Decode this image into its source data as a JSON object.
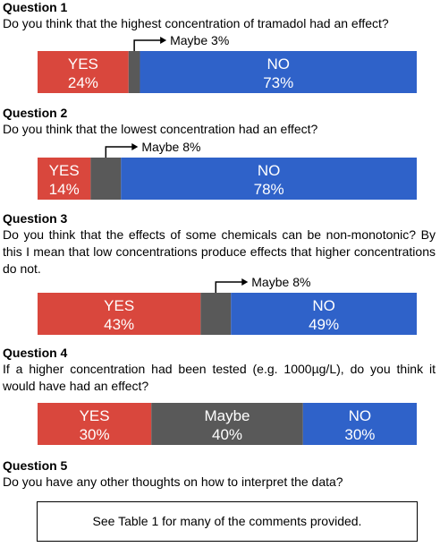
{
  "questions": [
    {
      "heading": "Question 1",
      "text": "Do you think that the highest concentration of tramadol had an effect?",
      "categories": [
        "YES",
        "Maybe",
        "NO"
      ],
      "values": [
        24,
        3,
        73
      ],
      "value_labels": [
        "24%",
        "3%",
        "73%"
      ],
      "colors": [
        "#d9473d",
        "#595959",
        "#2f62c9"
      ]
    },
    {
      "heading": "Question 2",
      "text": "Do you think that the lowest concentration had an effect?",
      "categories": [
        "YES",
        "Maybe",
        "NO"
      ],
      "values": [
        14,
        8,
        78
      ],
      "value_labels": [
        "14%",
        "8%",
        "78%"
      ],
      "colors": [
        "#d9473d",
        "#595959",
        "#2f62c9"
      ]
    },
    {
      "heading": "Question 3",
      "text": "Do you think that the effects of some chemicals can be non-monotonic? By this I mean that low concentrations produce effects that higher concentrations do not.",
      "categories": [
        "YES",
        "Maybe",
        "NO"
      ],
      "values": [
        43,
        8,
        49
      ],
      "value_labels": [
        "43%",
        "8%",
        "49%"
      ],
      "colors": [
        "#d9473d",
        "#595959",
        "#2f62c9"
      ]
    },
    {
      "heading": "Question 4",
      "text": "If a higher concentration had been tested (e.g. 1000µg/L), do you think it would have had an effect?",
      "categories": [
        "YES",
        "Maybe",
        "NO"
      ],
      "values": [
        30,
        40,
        30
      ],
      "value_labels": [
        "30%",
        "40%",
        "30%"
      ],
      "colors": [
        "#d9473d",
        "#595959",
        "#2f62c9"
      ]
    },
    {
      "heading": "Question 5",
      "text": "Do you have any other thoughts on how to interpret the data?",
      "box_text": "See Table 1 for many of the comments provided."
    }
  ]
}
